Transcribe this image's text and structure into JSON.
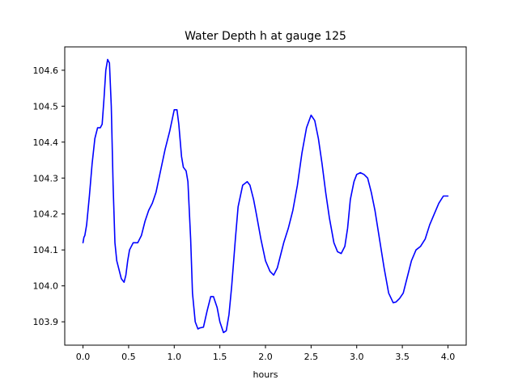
{
  "chart_data": {
    "type": "line",
    "title": "Water Depth h at gauge 125",
    "xlabel": "hours",
    "ylabel": "",
    "xlim": [
      -0.2,
      4.2
    ],
    "ylim": [
      103.835,
      104.665
    ],
    "xticks": [
      0.0,
      0.5,
      1.0,
      1.5,
      2.0,
      2.5,
      3.0,
      3.5,
      4.0
    ],
    "xtick_labels": [
      "0.0",
      "0.5",
      "1.0",
      "1.5",
      "2.0",
      "2.5",
      "3.0",
      "3.5",
      "4.0"
    ],
    "yticks": [
      103.9,
      104.0,
      104.1,
      104.2,
      104.3,
      104.4,
      104.5,
      104.6
    ],
    "ytick_labels": [
      "103.9",
      "104.0",
      "104.1",
      "104.2",
      "104.3",
      "104.4",
      "104.5",
      "104.6"
    ],
    "grid": false,
    "series": [
      {
        "color": "#0000ff",
        "x": [
          0.0,
          0.01,
          0.02,
          0.04,
          0.07,
          0.1,
          0.13,
          0.16,
          0.19,
          0.21,
          0.23,
          0.25,
          0.27,
          0.29,
          0.31,
          0.33,
          0.35,
          0.37,
          0.39,
          0.42,
          0.45,
          0.47,
          0.49,
          0.51,
          0.55,
          0.6,
          0.64,
          0.68,
          0.72,
          0.76,
          0.8,
          0.85,
          0.9,
          0.95,
          1.0,
          1.03,
          1.05,
          1.08,
          1.1,
          1.13,
          1.15,
          1.18,
          1.2,
          1.23,
          1.26,
          1.28,
          1.32,
          1.36,
          1.4,
          1.43,
          1.47,
          1.5,
          1.54,
          1.57,
          1.6,
          1.63,
          1.67,
          1.7,
          1.75,
          1.8,
          1.83,
          1.87,
          1.9,
          1.95,
          2.0,
          2.05,
          2.09,
          2.13,
          2.17,
          2.2,
          2.25,
          2.3,
          2.35,
          2.4,
          2.45,
          2.5,
          2.54,
          2.58,
          2.62,
          2.66,
          2.7,
          2.75,
          2.79,
          2.83,
          2.87,
          2.9,
          2.93,
          2.97,
          3.0,
          3.04,
          3.08,
          3.12,
          3.16,
          3.2,
          3.25,
          3.3,
          3.35,
          3.4,
          3.43,
          3.47,
          3.51,
          3.55,
          3.6,
          3.65,
          3.7,
          3.75,
          3.8,
          3.85,
          3.9,
          3.95,
          4.0
        ],
        "y": [
          104.12,
          104.135,
          104.14,
          104.17,
          104.25,
          104.34,
          104.41,
          104.44,
          104.44,
          104.45,
          104.52,
          104.6,
          104.63,
          104.62,
          104.5,
          104.28,
          104.12,
          104.07,
          104.05,
          104.02,
          104.01,
          104.03,
          104.07,
          104.1,
          104.12,
          104.12,
          104.14,
          104.18,
          104.21,
          104.23,
          104.26,
          104.32,
          104.38,
          104.43,
          104.49,
          104.49,
          104.45,
          104.36,
          104.33,
          104.32,
          104.29,
          104.13,
          103.98,
          103.9,
          103.88,
          103.883,
          103.885,
          103.93,
          103.97,
          103.97,
          103.94,
          103.9,
          103.87,
          103.875,
          103.92,
          104.0,
          104.13,
          104.22,
          104.28,
          104.29,
          104.28,
          104.24,
          104.2,
          104.13,
          104.07,
          104.04,
          104.03,
          104.05,
          104.09,
          104.12,
          104.16,
          104.21,
          104.28,
          104.37,
          104.44,
          104.475,
          104.46,
          104.41,
          104.34,
          104.26,
          104.19,
          104.12,
          104.095,
          104.09,
          104.11,
          104.16,
          104.24,
          104.29,
          104.31,
          104.315,
          104.31,
          104.3,
          104.26,
          104.21,
          104.13,
          104.05,
          103.98,
          103.953,
          103.955,
          103.965,
          103.98,
          104.02,
          104.07,
          104.1,
          104.11,
          104.13,
          104.17,
          104.2,
          104.23,
          104.25,
          104.25
        ]
      }
    ]
  }
}
